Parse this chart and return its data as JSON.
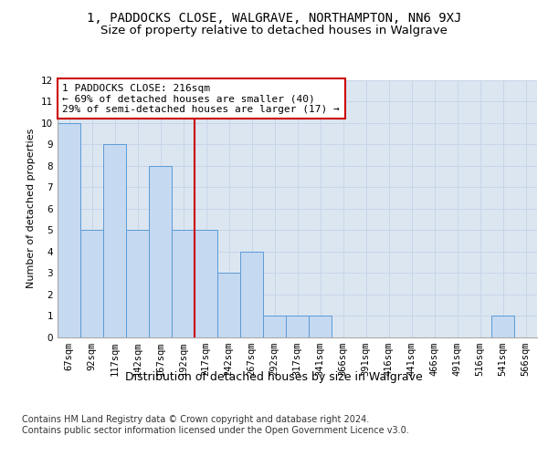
{
  "title1": "1, PADDOCKS CLOSE, WALGRAVE, NORTHAMPTON, NN6 9XJ",
  "title2": "Size of property relative to detached houses in Walgrave",
  "xlabel": "Distribution of detached houses by size in Walgrave",
  "ylabel": "Number of detached properties",
  "bins": [
    "67sqm",
    "92sqm",
    "117sqm",
    "142sqm",
    "167sqm",
    "192sqm",
    "217sqm",
    "242sqm",
    "267sqm",
    "292sqm",
    "317sqm",
    "341sqm",
    "366sqm",
    "391sqm",
    "416sqm",
    "441sqm",
    "466sqm",
    "491sqm",
    "516sqm",
    "541sqm",
    "566sqm"
  ],
  "bar_values": [
    10,
    5,
    9,
    5,
    8,
    5,
    5,
    3,
    4,
    1,
    1,
    1,
    0,
    0,
    0,
    0,
    0,
    0,
    0,
    1,
    0
  ],
  "bar_color": "#c5d9f1",
  "bar_edge_color": "#5b9bd5",
  "grid_color": "#c9d4e8",
  "background_color": "#dce6f1",
  "property_line_color": "#cc0000",
  "annotation_text": "1 PADDOCKS CLOSE: 216sqm\n← 69% of detached houses are smaller (40)\n29% of semi-detached houses are larger (17) →",
  "annotation_box_color": "#cc0000",
  "ylim": [
    0,
    12
  ],
  "yticks": [
    0,
    1,
    2,
    3,
    4,
    5,
    6,
    7,
    8,
    9,
    10,
    11,
    12
  ],
  "footer_text": "Contains HM Land Registry data © Crown copyright and database right 2024.\nContains public sector information licensed under the Open Government Licence v3.0.",
  "title1_fontsize": 10,
  "title2_fontsize": 9.5,
  "xlabel_fontsize": 9,
  "ylabel_fontsize": 8,
  "tick_fontsize": 7.5,
  "annotation_fontsize": 8,
  "footer_fontsize": 7
}
